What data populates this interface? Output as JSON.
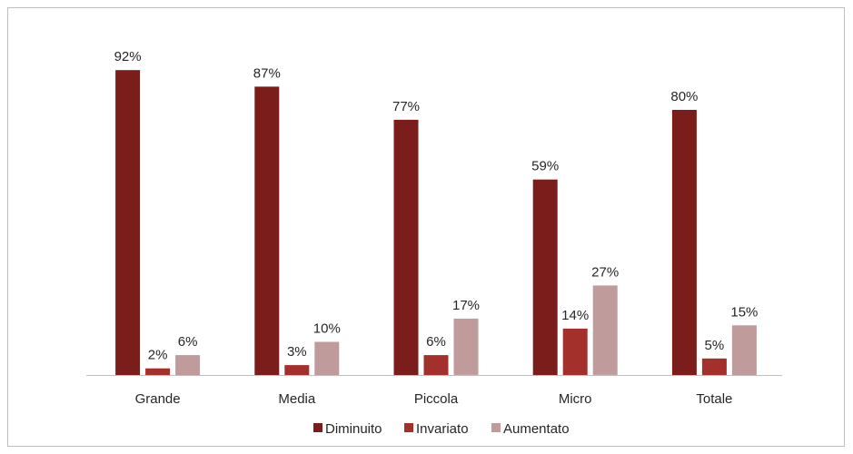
{
  "chart_data": {
    "type": "bar",
    "title": "",
    "xlabel": "",
    "ylabel": "",
    "ylim": [
      0,
      100
    ],
    "grid": false,
    "legend_position": "bottom",
    "categories": [
      "Grande",
      "Media",
      "Piccola",
      "Micro",
      "Totale"
    ],
    "series": [
      {
        "name": "Diminuito",
        "color": "#7b1e1b",
        "values": [
          92,
          87,
          77,
          59,
          80
        ],
        "labels": [
          "92%",
          "87%",
          "77%",
          "59%",
          "80%"
        ]
      },
      {
        "name": "Invariato",
        "color": "#a3302a",
        "values": [
          2,
          3,
          6,
          14,
          5
        ],
        "labels": [
          "2%",
          "3%",
          "6%",
          "14%",
          "5%"
        ]
      },
      {
        "name": "Aumentato",
        "color": "#bf9b9b",
        "values": [
          6,
          10,
          17,
          27,
          15
        ],
        "labels": [
          "6%",
          "10%",
          "17%",
          "27%",
          "15%"
        ]
      }
    ]
  }
}
